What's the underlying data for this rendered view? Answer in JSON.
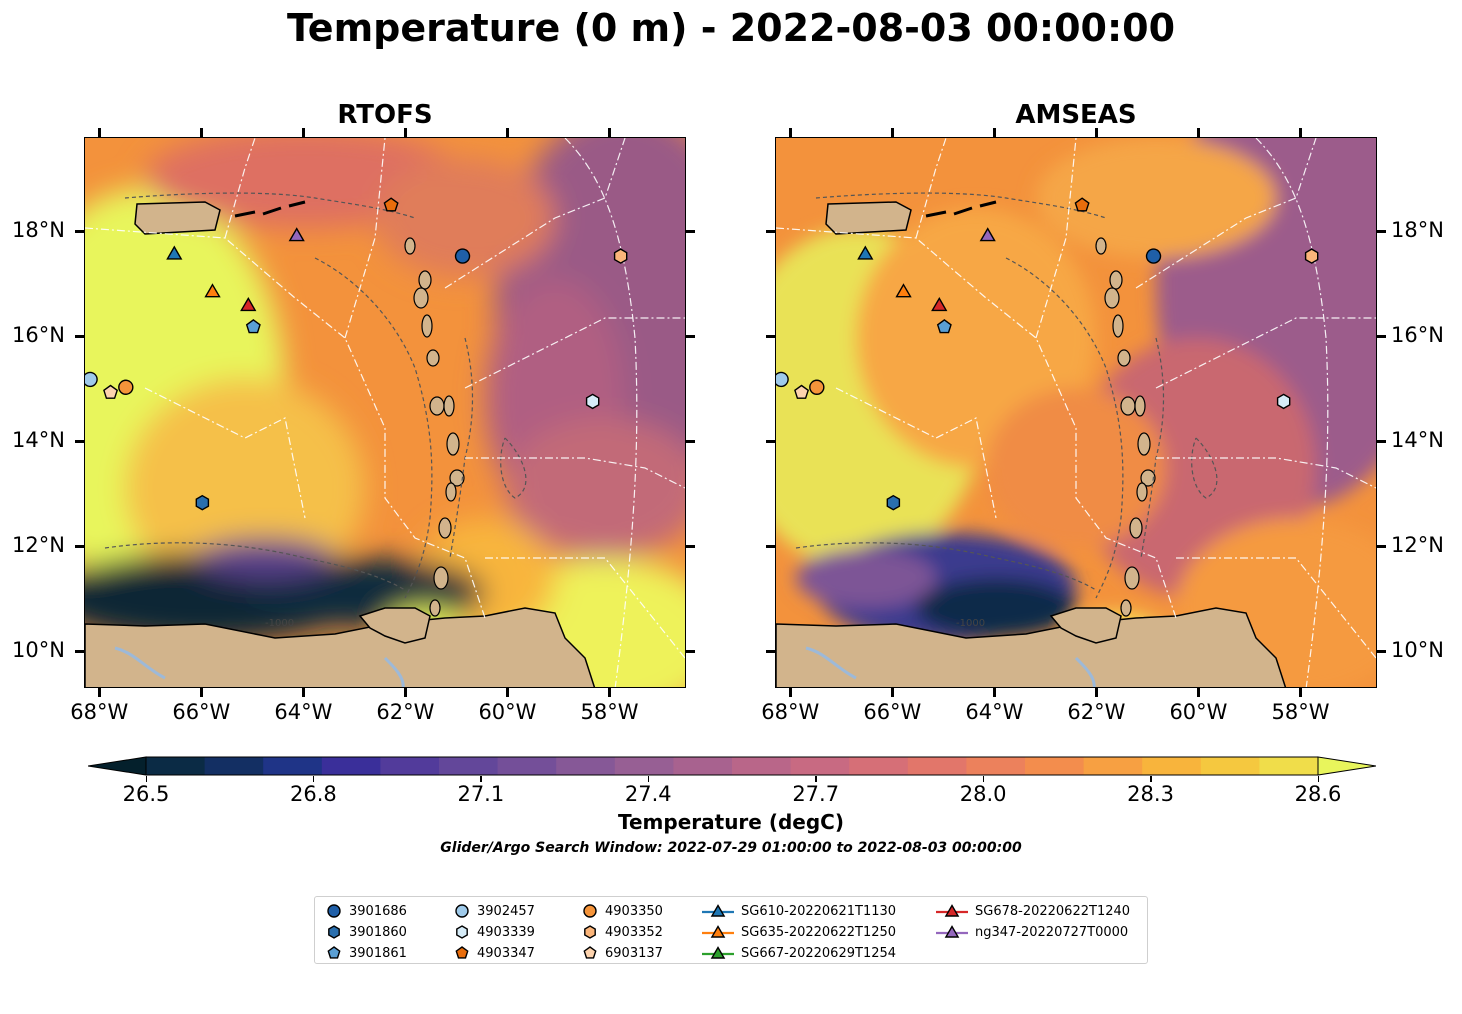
{
  "title": "Temperature (0 m) - 2022-08-03 00:00:00",
  "panels": [
    {
      "title": "RTOFS"
    },
    {
      "title": "AMSEAS"
    }
  ],
  "axes": {
    "lon_ticks": [
      "68°W",
      "66°W",
      "64°W",
      "62°W",
      "60°W",
      "58°W"
    ],
    "lat_ticks": [
      "18°N",
      "16°N",
      "14°N",
      "12°N",
      "10°N"
    ],
    "lon_range": [
      -68.3,
      -56.5
    ],
    "lat_range": [
      9.3,
      19.8
    ]
  },
  "colorbar": {
    "label": "Temperature (degC)",
    "ticks": [
      "26.5",
      "26.8",
      "27.1",
      "27.4",
      "27.7",
      "28.0",
      "28.3",
      "28.6"
    ],
    "range": [
      26.5,
      28.6
    ],
    "colormap": "thermal",
    "low_color": "#04202c",
    "high_color": "#e8fa5b"
  },
  "search_window": "Glider/Argo Search Window: 2022-07-29 01:00:00 to 2022-08-03 00:00:00",
  "contour_label": "-1000",
  "legend": {
    "items": [
      {
        "label": "3901686",
        "marker": "circle",
        "color": "#1f5fa8"
      },
      {
        "label": "3901860",
        "marker": "hexagon",
        "color": "#2a6fae"
      },
      {
        "label": "3901861",
        "marker": "pentagon",
        "color": "#5a9fd4"
      },
      {
        "label": "3902457",
        "marker": "circle",
        "color": "#9fcaea"
      },
      {
        "label": "4903339",
        "marker": "hexagon",
        "color": "#d6ecf8"
      },
      {
        "label": "4903347",
        "marker": "pentagon",
        "color": "#e96d0c"
      },
      {
        "label": "4903350",
        "marker": "circle",
        "color": "#f5943a"
      },
      {
        "label": "4903352",
        "marker": "hexagon",
        "color": "#fbb57a"
      },
      {
        "label": "6903137",
        "marker": "pentagon",
        "color": "#fdd3ae"
      },
      {
        "label": "SG610-20220621T1130",
        "marker": "triangle-line",
        "color": "#1f77b4"
      },
      {
        "label": "SG635-20220622T1250",
        "marker": "triangle-line",
        "color": "#ff7f0e"
      },
      {
        "label": "SG667-20220629T1254",
        "marker": "triangle-line",
        "color": "#2ca02c"
      },
      {
        "label": "SG678-20220622T1240",
        "marker": "triangle-line",
        "color": "#d62728"
      },
      {
        "label": "ng347-20220727T0000",
        "marker": "triangle-line",
        "color": "#9467bd"
      }
    ]
  },
  "observations": [
    {
      "id": "3901686",
      "lon": -60.9,
      "lat": 17.55
    },
    {
      "id": "3901860",
      "lon": -66.0,
      "lat": 12.85
    },
    {
      "id": "3901861",
      "lon": -65.0,
      "lat": 16.2
    },
    {
      "id": "3902457",
      "lon": -68.2,
      "lat": 15.2
    },
    {
      "id": "4903339",
      "lon": -58.35,
      "lat": 14.78
    },
    {
      "id": "4903347",
      "lon": -62.3,
      "lat": 18.52
    },
    {
      "id": "4903350",
      "lon": -67.5,
      "lat": 15.05
    },
    {
      "id": "4903352",
      "lon": -57.8,
      "lat": 17.55
    },
    {
      "id": "6903137",
      "lon": -67.8,
      "lat": 14.95
    },
    {
      "id": "SG610-20220621T1130",
      "lon": -66.55,
      "lat": 17.6
    },
    {
      "id": "SG635-20220622T1250",
      "lon": -65.8,
      "lat": 16.88
    },
    {
      "id": "SG678-20220622T1240",
      "lon": -65.1,
      "lat": 16.62
    },
    {
      "id": "ng347-20220727T0000",
      "lon": -64.15,
      "lat": 17.95
    }
  ]
}
